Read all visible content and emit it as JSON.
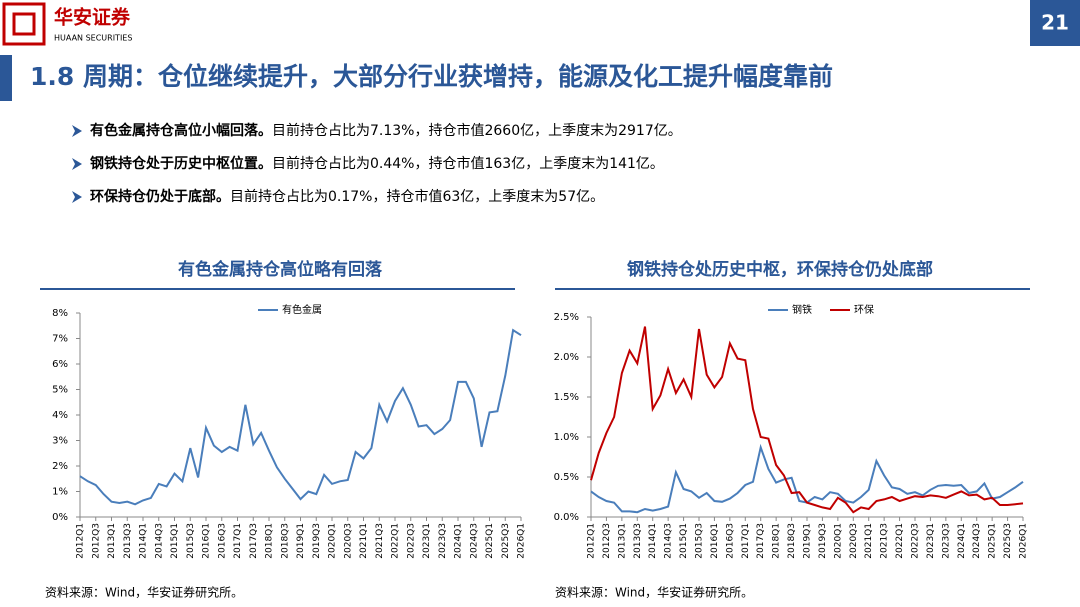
{
  "header": {
    "logo_text": "华安证券",
    "logo_subtext": "HUAAN SECURITIES",
    "page_number": "21",
    "title": "1.8 周期：仓位继续提升，大部分行业获增持，能源及化工提升幅度靠前"
  },
  "bullets": [
    {
      "bold": "有色金属持仓高位小幅回落。",
      "text": "目前持仓占比为7.13%，持仓市值2660亿，上季度末为2917亿。"
    },
    {
      "bold": "钢铁持仓处于历史中枢位置。",
      "text": "目前持仓占比为0.44%，持仓市值163亿，上季度末为141亿。"
    },
    {
      "bold": "环保持仓仍处于底部。",
      "text": "目前持仓占比为0.17%，持仓市值63亿，上季度末为57亿。"
    }
  ],
  "chart_data": [
    {
      "type": "line",
      "title": "有色金属持仓高位略有回落",
      "source": "资料来源：Wind，华安证券研究所。",
      "legend": "top",
      "grid": false,
      "categories": [
        "2012Q1",
        null,
        "2012Q3",
        null,
        "2013Q1",
        null,
        "2013Q3",
        null,
        "2014Q1",
        null,
        "2014Q3",
        null,
        "2015Q1",
        null,
        "2015Q3",
        null,
        "2016Q1",
        null,
        "2016Q3",
        null,
        "2017Q1",
        null,
        "2017Q3",
        null,
        "2018Q1",
        null,
        "2018Q3",
        null,
        "2019Q1",
        null,
        "2019Q3",
        null,
        "2020Q1",
        null,
        "2020Q3",
        null,
        "2021Q1",
        null,
        "2021Q3",
        null,
        "2022Q1",
        null,
        "2022Q3",
        null,
        "2023Q1",
        null,
        "2023Q3",
        null,
        "2024Q1",
        null,
        "2024Q3",
        null,
        "2025Q1",
        null,
        "2025Q3",
        null,
        "2026Q1"
      ],
      "series": [
        {
          "name": "有色金属",
          "color": "#4a7ebb",
          "values": [
            1.6,
            1.4,
            1.25,
            0.9,
            0.6,
            0.55,
            0.6,
            0.5,
            0.65,
            0.75,
            1.3,
            1.2,
            1.7,
            1.4,
            2.7,
            1.55,
            3.5,
            2.8,
            2.55,
            2.75,
            2.6,
            4.4,
            2.85,
            3.3,
            2.6,
            1.95,
            1.5,
            1.1,
            0.7,
            1.0,
            0.9,
            1.65,
            1.3,
            1.4,
            1.45,
            2.55,
            2.3,
            2.7,
            4.4,
            3.75,
            4.55,
            5.05,
            4.4,
            3.55,
            3.6,
            3.25,
            3.45,
            3.8,
            5.3,
            5.3,
            4.65,
            2.75,
            4.1,
            4.15,
            5.55,
            7.33,
            7.13
          ]
        }
      ],
      "ylim": [
        0,
        8
      ],
      "yticks": [
        {
          "value": 0,
          "label": "0%"
        },
        {
          "value": 1,
          "label": "1%"
        },
        {
          "value": 2,
          "label": "2%"
        },
        {
          "value": 3,
          "label": "3%"
        },
        {
          "value": 4,
          "label": "4%"
        },
        {
          "value": 5,
          "label": "5%"
        },
        {
          "value": 6,
          "label": "6%"
        },
        {
          "value": 7,
          "label": "7%"
        },
        {
          "value": 8,
          "label": "8%"
        }
      ]
    },
    {
      "type": "line",
      "title": "钢铁持仓处历史中枢，环保持仓仍处底部",
      "source": "资料来源：Wind，华安证券研究所。",
      "legend": "top",
      "grid": false,
      "categories": [
        "2012Q1",
        null,
        "2012Q3",
        null,
        "2013Q1",
        null,
        "2013Q3",
        null,
        "2014Q1",
        null,
        "2014Q3",
        null,
        "2015Q1",
        null,
        "2015Q3",
        null,
        "2016Q1",
        null,
        "2016Q3",
        null,
        "2017Q1",
        null,
        "2017Q3",
        null,
        "2018Q1",
        null,
        "2018Q3",
        null,
        "2019Q1",
        null,
        "2019Q3",
        null,
        "2020Q1",
        null,
        "2020Q3",
        null,
        "2021Q1",
        null,
        "2021Q3",
        null,
        "2022Q1",
        null,
        "2022Q3",
        null,
        "2023Q1",
        null,
        "2023Q3",
        null,
        "2024Q1",
        null,
        "2024Q3",
        null,
        "2025Q1",
        null,
        "2025Q3",
        null,
        "2026Q1"
      ],
      "series": [
        {
          "name": "钢铁",
          "color": "#4a7ebb",
          "values": [
            0.32,
            0.25,
            0.2,
            0.18,
            0.07,
            0.07,
            0.06,
            0.1,
            0.08,
            0.1,
            0.13,
            0.56,
            0.35,
            0.32,
            0.24,
            0.3,
            0.2,
            0.19,
            0.23,
            0.3,
            0.4,
            0.44,
            0.87,
            0.6,
            0.43,
            0.47,
            0.49,
            0.2,
            0.18,
            0.25,
            0.22,
            0.31,
            0.29,
            0.2,
            0.18,
            0.25,
            0.34,
            0.7,
            0.52,
            0.37,
            0.35,
            0.29,
            0.31,
            0.27,
            0.34,
            0.39,
            0.4,
            0.39,
            0.4,
            0.3,
            0.32,
            0.42,
            0.23,
            0.25,
            0.31,
            0.37,
            0.44
          ]
        },
        {
          "name": "环保",
          "color": "#c00000",
          "values": [
            0.46,
            0.8,
            1.05,
            1.25,
            1.8,
            2.08,
            1.92,
            2.38,
            1.35,
            1.52,
            1.85,
            1.55,
            1.72,
            1.5,
            2.35,
            1.78,
            1.62,
            1.75,
            2.17,
            1.98,
            1.96,
            1.35,
            1.0,
            0.98,
            0.65,
            0.52,
            0.3,
            0.31,
            0.18,
            0.15,
            0.12,
            0.1,
            0.24,
            0.18,
            0.06,
            0.12,
            0.1,
            0.2,
            0.22,
            0.25,
            0.2,
            0.23,
            0.26,
            0.25,
            0.27,
            0.26,
            0.24,
            0.28,
            0.32,
            0.27,
            0.28,
            0.22,
            0.24,
            0.15,
            0.15,
            0.16,
            0.17
          ]
        }
      ],
      "ylim": [
        0,
        2.5
      ],
      "yticks": [
        {
          "value": 0,
          "label": "0.0%"
        },
        {
          "value": 0.5,
          "label": "0.5%"
        },
        {
          "value": 1,
          "label": "1.0%"
        },
        {
          "value": 1.5,
          "label": "1.5%"
        },
        {
          "value": 2,
          "label": "2.0%"
        },
        {
          "value": 2.5,
          "label": "2.5%"
        }
      ]
    }
  ]
}
